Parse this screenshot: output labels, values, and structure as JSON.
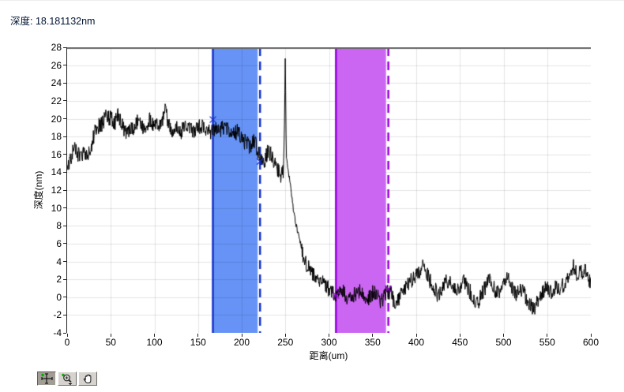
{
  "header": {
    "depth_readout": "深度: 18.181132nm"
  },
  "chart_data": {
    "type": "line",
    "title": "",
    "xlabel": "距离(um)",
    "ylabel": "深度(nm)",
    "xlim": [
      0,
      600
    ],
    "ylim": [
      -4,
      28
    ],
    "x_ticks": [
      0,
      50,
      100,
      150,
      200,
      250,
      300,
      350,
      400,
      450,
      500,
      550,
      600
    ],
    "y_ticks": [
      28,
      26,
      24,
      22,
      20,
      18,
      16,
      14,
      12,
      10,
      8,
      6,
      4,
      2,
      0,
      -2,
      -4
    ],
    "grid": true,
    "gridline_color": "rgba(0,0,0,0.10)",
    "top_border_color": "#666666",
    "axis_color": "#222222",
    "background": "#ffffff",
    "line_color": "#000000",
    "series": [
      {
        "name": "depth-profile",
        "samples": 1300,
        "noise_amplitude": 0.9,
        "noise_quiet_range": [
          249,
          268
        ],
        "noise_quiet_amplitude": 0.3,
        "noise_seed": 11,
        "trend_points": [
          [
            0,
            15.2
          ],
          [
            3,
            15.0
          ],
          [
            8,
            16.8
          ],
          [
            12,
            16.0
          ],
          [
            16,
            15.8
          ],
          [
            20,
            16.3
          ],
          [
            24,
            16.1
          ],
          [
            28,
            17.0
          ],
          [
            32,
            18.6
          ],
          [
            36,
            19.2
          ],
          [
            40,
            19.4
          ],
          [
            45,
            20.3
          ],
          [
            50,
            20.0
          ],
          [
            55,
            19.6
          ],
          [
            58,
            20.4
          ],
          [
            62,
            19.4
          ],
          [
            66,
            18.6
          ],
          [
            70,
            18.3
          ],
          [
            75,
            18.9
          ],
          [
            80,
            19.6
          ],
          [
            85,
            19.2
          ],
          [
            90,
            19.0
          ],
          [
            95,
            20.0
          ],
          [
            100,
            19.0
          ],
          [
            105,
            19.3
          ],
          [
            110,
            20.2
          ],
          [
            113,
            21.0
          ],
          [
            116,
            19.6
          ],
          [
            120,
            18.8
          ],
          [
            125,
            19.1
          ],
          [
            130,
            18.5
          ],
          [
            135,
            19.3
          ],
          [
            140,
            19.0
          ],
          [
            145,
            18.5
          ],
          [
            150,
            18.9
          ],
          [
            155,
            19.3
          ],
          [
            160,
            18.7
          ],
          [
            165,
            18.4
          ],
          [
            170,
            18.9
          ],
          [
            175,
            18.5
          ],
          [
            180,
            19.2
          ],
          [
            185,
            18.8
          ],
          [
            190,
            18.2
          ],
          [
            195,
            18.6
          ],
          [
            200,
            17.9
          ],
          [
            205,
            17.2
          ],
          [
            210,
            16.9
          ],
          [
            214,
            17.6
          ],
          [
            218,
            16.6
          ],
          [
            222,
            15.6
          ],
          [
            226,
            15.2
          ],
          [
            230,
            16.4
          ],
          [
            234,
            16.0
          ],
          [
            238,
            14.9
          ],
          [
            242,
            14.2
          ],
          [
            245,
            13.6
          ],
          [
            248,
            14.3
          ],
          [
            249,
            20.0
          ],
          [
            250,
            27.4
          ],
          [
            251,
            16.0
          ],
          [
            253,
            14.2
          ],
          [
            255,
            13.2
          ],
          [
            257,
            11.5
          ],
          [
            259,
            10.0
          ],
          [
            261,
            8.8
          ],
          [
            263,
            7.8
          ],
          [
            265,
            7.0
          ],
          [
            267,
            6.3
          ],
          [
            269,
            5.2
          ],
          [
            272,
            4.2
          ],
          [
            276,
            3.4
          ],
          [
            280,
            2.8
          ],
          [
            284,
            2.3
          ],
          [
            288,
            1.9
          ],
          [
            292,
            2.2
          ],
          [
            296,
            1.4
          ],
          [
            300,
            0.9
          ],
          [
            305,
            0.4
          ],
          [
            310,
            0.2
          ],
          [
            315,
            0.7
          ],
          [
            320,
            0.1
          ],
          [
            325,
            -0.4
          ],
          [
            330,
            0.4
          ],
          [
            335,
            0.8
          ],
          [
            340,
            0.1
          ],
          [
            345,
            -0.3
          ],
          [
            350,
            0.5
          ],
          [
            355,
            0.2
          ],
          [
            360,
            -0.5
          ],
          [
            365,
            0.4
          ],
          [
            370,
            0.7
          ],
          [
            375,
            -0.6
          ],
          [
            380,
            -0.1
          ],
          [
            385,
            0.7
          ],
          [
            390,
            1.4
          ],
          [
            395,
            1.9
          ],
          [
            400,
            2.4
          ],
          [
            405,
            3.2
          ],
          [
            408,
            4.0
          ],
          [
            412,
            2.8
          ],
          [
            416,
            1.8
          ],
          [
            420,
            1.1
          ],
          [
            425,
            0.2
          ],
          [
            430,
            0.9
          ],
          [
            435,
            1.9
          ],
          [
            440,
            1.4
          ],
          [
            445,
            0.7
          ],
          [
            450,
            1.1
          ],
          [
            455,
            1.7
          ],
          [
            460,
            0.9
          ],
          [
            465,
            0.1
          ],
          [
            470,
            -0.9
          ],
          [
            475,
            0.4
          ],
          [
            480,
            1.3
          ],
          [
            485,
            2.1
          ],
          [
            490,
            0.9
          ],
          [
            495,
            0.2
          ],
          [
            500,
            1.4
          ],
          [
            505,
            2.3
          ],
          [
            510,
            1.1
          ],
          [
            515,
            0.3
          ],
          [
            520,
            0.9
          ],
          [
            525,
            0.1
          ],
          [
            530,
            -0.7
          ],
          [
            535,
            -1.3
          ],
          [
            540,
            -0.1
          ],
          [
            545,
            0.7
          ],
          [
            550,
            1.1
          ],
          [
            555,
            0.4
          ],
          [
            560,
            1.4
          ],
          [
            565,
            0.7
          ],
          [
            570,
            1.7
          ],
          [
            575,
            2.6
          ],
          [
            580,
            3.6
          ],
          [
            584,
            2.4
          ],
          [
            588,
            2.7
          ],
          [
            592,
            3.0
          ],
          [
            596,
            2.6
          ],
          [
            600,
            1.6
          ]
        ]
      }
    ],
    "regions": [
      {
        "name": "step-top-region",
        "x_start": 167,
        "x_end": 221,
        "fill_color": "#6693f5",
        "edge_color": "#1532cc",
        "right_edge_style": "dashed",
        "cursors": [
          {
            "x": 167,
            "y": 19.9
          },
          {
            "x": 221,
            "y": 15.2
          }
        ]
      },
      {
        "name": "step-bottom-region",
        "x_start": 308,
        "x_end": 368,
        "fill_color": "#cb66f2",
        "edge_color": "#9900dd",
        "right_edge_style": "dashed",
        "cursors": [
          {
            "x": 308,
            "y": 0.2
          },
          {
            "x": 368,
            "y": 0.9
          }
        ]
      }
    ]
  },
  "palette": {
    "buttons": [
      {
        "icon": "crosshair-icon",
        "pressed": true
      },
      {
        "icon": "zoom-magnifier-icon",
        "pressed": false
      },
      {
        "icon": "pan-hand-icon",
        "pressed": false
      }
    ]
  }
}
